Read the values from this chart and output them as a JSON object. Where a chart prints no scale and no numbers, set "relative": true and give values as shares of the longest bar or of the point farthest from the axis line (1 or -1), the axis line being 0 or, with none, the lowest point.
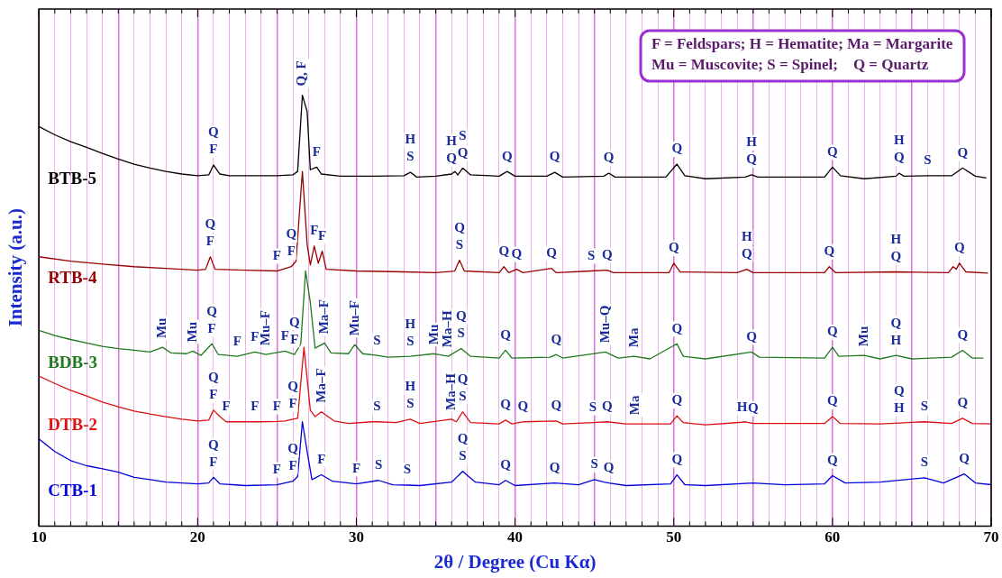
{
  "chart_data": {
    "type": "line",
    "relative": true,
    "xlabel": "2θ / Degree (Cu Kα)",
    "ylabel": "Intensity (a.u.)",
    "xlim": [
      10,
      70
    ],
    "xticks": [
      10,
      {
        "value": 11,
        "label": null
      },
      {
        "value": 12,
        "label": null
      },
      {
        "value": 13,
        "label": null
      },
      {
        "value": 14,
        "label": null
      },
      {
        "value": 15,
        "label": null
      },
      {
        "value": 16,
        "label": null
      },
      {
        "value": 17,
        "label": null
      },
      {
        "value": 18,
        "label": null
      },
      {
        "value": 19,
        "label": null
      },
      20,
      {
        "value": 21,
        "label": null
      },
      {
        "value": 22,
        "label": null
      },
      {
        "value": 23,
        "label": null
      },
      {
        "value": 24,
        "label": null
      },
      {
        "value": 25,
        "label": null
      },
      {
        "value": 26,
        "label": null
      },
      {
        "value": 27,
        "label": null
      },
      {
        "value": 28,
        "label": null
      },
      {
        "value": 29,
        "label": null
      },
      30,
      {
        "value": 31,
        "label": null
      },
      {
        "value": 32,
        "label": null
      },
      {
        "value": 33,
        "label": null
      },
      {
        "value": 34,
        "label": null
      },
      {
        "value": 35,
        "label": null
      },
      {
        "value": 36,
        "label": null
      },
      {
        "value": 37,
        "label": null
      },
      {
        "value": 38,
        "label": null
      },
      {
        "value": 39,
        "label": null
      },
      40,
      {
        "value": 41,
        "label": null
      },
      {
        "value": 42,
        "label": null
      },
      {
        "value": 43,
        "label": null
      },
      {
        "value": 44,
        "label": null
      },
      {
        "value": 45,
        "label": null
      },
      {
        "value": 46,
        "label": null
      },
      {
        "value": 47,
        "label": null
      },
      {
        "value": 48,
        "label": null
      },
      {
        "value": 49,
        "label": null
      },
      50,
      {
        "value": 51,
        "label": null
      },
      {
        "value": 52,
        "label": null
      },
      {
        "value": 53,
        "label": null
      },
      {
        "value": 54,
        "label": null
      },
      {
        "value": 55,
        "label": null
      },
      {
        "value": 56,
        "label": null
      },
      {
        "value": 57,
        "label": null
      },
      {
        "value": 58,
        "label": null
      },
      {
        "value": 59,
        "label": null
      },
      60,
      {
        "value": 61,
        "label": null
      },
      {
        "value": 62,
        "label": null
      },
      {
        "value": 63,
        "label": null
      },
      {
        "value": 64,
        "label": null
      },
      {
        "value": 65,
        "label": null
      },
      {
        "value": 66,
        "label": null
      },
      {
        "value": 67,
        "label": null
      },
      {
        "value": 68,
        "label": null
      },
      {
        "value": 69,
        "label": null
      },
      70
    ],
    "grid": "x",
    "legend": false,
    "marker": "none",
    "line_style": "solid",
    "series": [
      {
        "name": "BTB-5",
        "color": "#000000",
        "x": [
          10,
          11,
          12,
          13,
          14,
          15,
          16,
          17,
          18,
          19,
          20,
          20.7,
          21.0,
          21.4,
          22,
          24,
          25,
          26,
          26.3,
          26.6,
          26.9,
          27.1,
          27.5,
          27.8,
          29,
          31,
          33,
          33.4,
          33.8,
          35,
          36,
          36.2,
          36.4,
          36.7,
          37.2,
          39,
          39.5,
          40,
          42,
          42.5,
          43,
          45.6,
          45.9,
          46.3,
          49.5,
          50.2,
          50.7,
          52,
          54.5,
          54.9,
          55.3,
          59.5,
          60,
          60.5,
          62,
          64,
          64.2,
          64.5,
          66,
          67.5,
          68.2,
          69,
          69.7
        ],
        "values": [
          0.927,
          0.908,
          0.892,
          0.879,
          0.865,
          0.852,
          0.84,
          0.831,
          0.823,
          0.817,
          0.813,
          0.815,
          0.838,
          0.817,
          0.813,
          0.813,
          0.813,
          0.815,
          0.823,
          1.0,
          0.962,
          0.827,
          0.833,
          0.817,
          0.812,
          0.812,
          0.813,
          0.821,
          0.81,
          0.812,
          0.817,
          0.823,
          0.815,
          0.831,
          0.815,
          0.812,
          0.823,
          0.812,
          0.812,
          0.821,
          0.81,
          0.812,
          0.819,
          0.81,
          0.81,
          0.84,
          0.813,
          0.806,
          0.81,
          0.815,
          0.81,
          0.81,
          0.833,
          0.813,
          0.806,
          0.812,
          0.819,
          0.812,
          0.813,
          0.813,
          0.831,
          0.812,
          0.808
        ]
      },
      {
        "name": "RTB-4",
        "color": "#990000",
        "x": [
          10,
          12,
          14,
          16,
          18,
          20,
          20.5,
          20.8,
          21.1,
          23,
          25,
          25.9,
          26.2,
          26.6,
          26.9,
          27.1,
          27.35,
          27.6,
          27.85,
          28.1,
          30,
          33,
          35,
          36.2,
          36.5,
          36.8,
          39,
          39.3,
          39.6,
          40.1,
          40.5,
          42.3,
          42.6,
          44.8,
          45.8,
          46.2,
          49.7,
          50.0,
          50.4,
          54,
          54.6,
          55,
          59.5,
          59.8,
          60.2,
          64,
          67.3,
          67.6,
          67.8,
          68.0,
          68.4,
          69.8
        ],
        "values": [
          0.625,
          0.615,
          0.608,
          0.602,
          0.598,
          0.594,
          0.596,
          0.625,
          0.596,
          0.594,
          0.592,
          0.602,
          0.615,
          0.823,
          0.654,
          0.606,
          0.65,
          0.61,
          0.638,
          0.596,
          0.592,
          0.59,
          0.588,
          0.592,
          0.617,
          0.592,
          0.588,
          0.602,
          0.588,
          0.596,
          0.588,
          0.598,
          0.588,
          0.592,
          0.594,
          0.588,
          0.588,
          0.61,
          0.59,
          0.588,
          0.596,
          0.588,
          0.588,
          0.602,
          0.588,
          0.59,
          0.588,
          0.602,
          0.596,
          0.61,
          0.59,
          0.587
        ]
      },
      {
        "name": "BDB-3",
        "color": "#1e7a1e",
        "x": [
          10,
          11,
          12,
          13,
          14,
          15,
          16,
          17,
          17.8,
          18.3,
          19.3,
          19.7,
          20.2,
          20.9,
          21.3,
          22.5,
          23.6,
          24.3,
          25.5,
          26.1,
          26.5,
          26.8,
          27.1,
          27.4,
          28.0,
          28.4,
          29.5,
          29.9,
          30.4,
          31.3,
          32,
          33.4,
          34.9,
          35.8,
          36.6,
          37.2,
          39,
          39.4,
          39.8,
          42.2,
          42.6,
          43,
          45.7,
          46.5,
          47.5,
          48.5,
          50.2,
          50.6,
          52,
          54.9,
          55.4,
          59.5,
          60.0,
          60.4,
          62,
          63,
          64.0,
          65,
          67.5,
          68.2,
          68.8,
          69.5
        ],
        "values": [
          0.454,
          0.442,
          0.433,
          0.425,
          0.417,
          0.412,
          0.408,
          0.404,
          0.415,
          0.402,
          0.4,
          0.406,
          0.396,
          0.423,
          0.398,
          0.394,
          0.404,
          0.398,
          0.406,
          0.398,
          0.423,
          0.592,
          0.519,
          0.413,
          0.425,
          0.402,
          0.4,
          0.421,
          0.4,
          0.396,
          0.392,
          0.394,
          0.4,
          0.394,
          0.412,
          0.394,
          0.39,
          0.408,
          0.39,
          0.392,
          0.398,
          0.39,
          0.404,
          0.39,
          0.394,
          0.388,
          0.423,
          0.394,
          0.388,
          0.404,
          0.392,
          0.39,
          0.415,
          0.394,
          0.396,
          0.388,
          0.396,
          0.388,
          0.392,
          0.408,
          0.39,
          0.39
        ]
      },
      {
        "name": "DTB-2",
        "color": "#dd1111",
        "x": [
          10,
          11,
          12,
          13,
          14,
          15,
          16,
          17,
          18,
          19,
          20,
          20.7,
          21.0,
          21.4,
          21.8,
          23.6,
          24,
          25.0,
          25.5,
          26.0,
          26.3,
          26.7,
          27.1,
          27.4,
          27.8,
          28.6,
          29.5,
          31,
          31.3,
          32.5,
          33.4,
          34,
          36.0,
          36.3,
          36.7,
          37.2,
          39,
          39.4,
          39.8,
          40.5,
          42.6,
          43,
          44.9,
          45.8,
          47,
          47.6,
          49.8,
          50.2,
          50.6,
          52,
          54.3,
          54.5,
          55,
          59.5,
          60.0,
          60.5,
          63,
          64.2,
          65.8,
          67.5,
          68.2,
          68.8,
          70
        ],
        "values": [
          0.348,
          0.331,
          0.315,
          0.302,
          0.288,
          0.277,
          0.267,
          0.26,
          0.254,
          0.248,
          0.244,
          0.246,
          0.269,
          0.254,
          0.242,
          0.242,
          0.242,
          0.243,
          0.244,
          0.248,
          0.25,
          0.415,
          0.269,
          0.254,
          0.265,
          0.244,
          0.238,
          0.242,
          0.242,
          0.24,
          0.248,
          0.238,
          0.248,
          0.242,
          0.265,
          0.24,
          0.237,
          0.246,
          0.237,
          0.242,
          0.244,
          0.237,
          0.24,
          0.242,
          0.237,
          0.237,
          0.237,
          0.256,
          0.24,
          0.235,
          0.241,
          0.242,
          0.238,
          0.238,
          0.254,
          0.238,
          0.237,
          0.239,
          0.242,
          0.238,
          0.25,
          0.238,
          0.237
        ]
      },
      {
        "name": "CTB-1",
        "color": "#0000dd",
        "x": [
          10,
          11,
          12,
          13,
          14,
          15,
          16,
          17,
          18,
          19,
          20,
          20.7,
          21.0,
          21.4,
          23,
          25,
          26.0,
          26.3,
          26.6,
          26.9,
          27.2,
          27.8,
          28.5,
          30,
          31.4,
          32.3,
          33.2,
          34,
          36,
          36.7,
          37.5,
          39,
          39.4,
          40,
          42.5,
          44,
          45.0,
          45.6,
          45.9,
          47,
          49.8,
          50.2,
          50.7,
          52,
          55,
          57,
          59.5,
          60.0,
          60.8,
          63,
          65.8,
          67,
          68.3,
          69,
          70
        ],
        "values": [
          0.202,
          0.173,
          0.152,
          0.14,
          0.133,
          0.125,
          0.113,
          0.108,
          0.102,
          0.1,
          0.098,
          0.1,
          0.113,
          0.098,
          0.094,
          0.096,
          0.104,
          0.115,
          0.242,
          0.173,
          0.108,
          0.119,
          0.104,
          0.098,
          0.106,
          0.096,
          0.095,
          0.094,
          0.102,
          0.127,
          0.102,
          0.096,
          0.106,
          0.094,
          0.1,
          0.096,
          0.108,
          0.102,
          0.1,
          0.094,
          0.098,
          0.119,
          0.096,
          0.094,
          0.1,
          0.096,
          0.098,
          0.117,
          0.1,
          0.102,
          0.112,
          0.1,
          0.121,
          0.1,
          0.096
        ]
      }
    ],
    "annotations": [
      "F = Feldspars; H = Hematite; Ma = Margarite",
      "Mu = Muscovite; S = Spinel;    Q = Quartz",
      {
        "text": "Q, F",
        "x": 26.6,
        "y": 1.0
      },
      {
        "text": "F",
        "x": 21.0,
        "y": 0.838
      },
      {
        "text": "Q",
        "x": 21.0,
        "y": 0.838
      },
      {
        "text": "F",
        "x": 27.5,
        "y": 0.833
      },
      {
        "text": "S",
        "x": 33.4,
        "y": 0.821
      },
      {
        "text": "H",
        "x": 33.4,
        "y": 0.821
      },
      {
        "text": "Q",
        "x": 36,
        "y": 0.817
      },
      {
        "text": "H",
        "x": 36,
        "y": 0.817
      },
      {
        "text": "Q",
        "x": 36.7,
        "y": 0.831
      },
      {
        "text": "S",
        "x": 36.7,
        "y": 0.831
      },
      {
        "text": "Q",
        "x": 39.5,
        "y": 0.823
      },
      {
        "text": "Q",
        "x": 42.5,
        "y": 0.821
      },
      {
        "text": "Q",
        "x": 45.9,
        "y": 0.819
      },
      {
        "text": "Q",
        "x": 50.2,
        "y": 0.84
      },
      {
        "text": "Q",
        "x": 54.9,
        "y": 0.815
      },
      {
        "text": "H",
        "x": 54.9,
        "y": 0.815
      },
      {
        "text": "Q",
        "x": 60,
        "y": 0.833
      },
      {
        "text": "Q",
        "x": 64.2,
        "y": 0.819
      },
      {
        "text": "H",
        "x": 64.2,
        "y": 0.819
      },
      {
        "text": "S",
        "x": 66,
        "y": 0.813
      },
      {
        "text": "Q",
        "x": 68.2,
        "y": 0.831
      },
      {
        "text": "F",
        "x": 20.8,
        "y": 0.625
      },
      {
        "text": "Q",
        "x": 20.8,
        "y": 0.625
      },
      {
        "text": "F",
        "x": 25,
        "y": 0.592
      },
      {
        "text": "F",
        "x": 25.9,
        "y": 0.602
      },
      {
        "text": "Q",
        "x": 25.9,
        "y": 0.602
      },
      {
        "text": "F",
        "x": 27.35,
        "y": 0.65
      },
      {
        "text": "F",
        "x": 27.85,
        "y": 0.638
      },
      {
        "text": "S",
        "x": 36.5,
        "y": 0.617
      },
      {
        "text": "Q",
        "x": 36.5,
        "y": 0.617
      },
      {
        "text": "Q",
        "x": 39.3,
        "y": 0.602
      },
      {
        "text": "Q",
        "x": 40.1,
        "y": 0.596
      },
      {
        "text": "Q",
        "x": 42.3,
        "y": 0.598
      },
      {
        "text": "S",
        "x": 44.8,
        "y": 0.592
      },
      {
        "text": "Q",
        "x": 45.8,
        "y": 0.594
      },
      {
        "text": "Q",
        "x": 50.0,
        "y": 0.61
      },
      {
        "text": "Q",
        "x": 54.6,
        "y": 0.596
      },
      {
        "text": "H",
        "x": 54.6,
        "y": 0.596
      },
      {
        "text": "Q",
        "x": 59.8,
        "y": 0.602
      },
      {
        "text": "Q",
        "x": 64,
        "y": 0.59
      },
      {
        "text": "H",
        "x": 64,
        "y": 0.59
      },
      {
        "text": "Q",
        "x": 68.0,
        "y": 0.61
      },
      {
        "text": "Mu",
        "x": 17.8,
        "y": 0.415
      },
      {
        "text": "Mu",
        "x": 19.7,
        "y": 0.406
      },
      {
        "text": "F",
        "x": 20.9,
        "y": 0.423
      },
      {
        "text": "Q",
        "x": 20.9,
        "y": 0.423
      },
      {
        "text": "F",
        "x": 22.5,
        "y": 0.394
      },
      {
        "text": "F",
        "x": 23.6,
        "y": 0.404
      },
      {
        "text": "Mu–F",
        "x": 24.3,
        "y": 0.398
      },
      {
        "text": "F",
        "x": 25.5,
        "y": 0.406
      },
      {
        "text": "F",
        "x": 26.1,
        "y": 0.398
      },
      {
        "text": "Q",
        "x": 26.1,
        "y": 0.398
      },
      {
        "text": "Ma–F",
        "x": 28.0,
        "y": 0.425
      },
      {
        "text": "Mu–F",
        "x": 29.9,
        "y": 0.421
      },
      {
        "text": "S",
        "x": 31.3,
        "y": 0.396
      },
      {
        "text": "S",
        "x": 33.4,
        "y": 0.394
      },
      {
        "text": "H",
        "x": 33.4,
        "y": 0.394
      },
      {
        "text": "Mu",
        "x": 34.9,
        "y": 0.4
      },
      {
        "text": "Ma–H",
        "x": 35.8,
        "y": 0.394
      },
      {
        "text": "S",
        "x": 36.6,
        "y": 0.412
      },
      {
        "text": "Q",
        "x": 36.6,
        "y": 0.412
      },
      {
        "text": "Q",
        "x": 39.4,
        "y": 0.408
      },
      {
        "text": "Q",
        "x": 42.6,
        "y": 0.398
      },
      {
        "text": "Mu–Q",
        "x": 45.7,
        "y": 0.404
      },
      {
        "text": "Ma",
        "x": 47.5,
        "y": 0.394
      },
      {
        "text": "Q",
        "x": 50.2,
        "y": 0.423
      },
      {
        "text": "Q",
        "x": 54.9,
        "y": 0.404
      },
      {
        "text": "Q",
        "x": 60.0,
        "y": 0.415
      },
      {
        "text": "Mu",
        "x": 62,
        "y": 0.396
      },
      {
        "text": "H",
        "x": 64.0,
        "y": 0.396
      },
      {
        "text": "Q",
        "x": 64.0,
        "y": 0.396
      },
      {
        "text": "Q",
        "x": 68.2,
        "y": 0.408
      },
      {
        "text": "F",
        "x": 21.0,
        "y": 0.269
      },
      {
        "text": "Q",
        "x": 21.0,
        "y": 0.269
      },
      {
        "text": "F",
        "x": 21.8,
        "y": 0.242
      },
      {
        "text": "F",
        "x": 23.6,
        "y": 0.242
      },
      {
        "text": "F",
        "x": 25.0,
        "y": 0.243
      },
      {
        "text": "F",
        "x": 26.0,
        "y": 0.248
      },
      {
        "text": "Q",
        "x": 26.0,
        "y": 0.248
      },
      {
        "text": "Ma–F",
        "x": 27.8,
        "y": 0.265
      },
      {
        "text": "S",
        "x": 31.3,
        "y": 0.242
      },
      {
        "text": "S",
        "x": 33.4,
        "y": 0.248
      },
      {
        "text": "H",
        "x": 33.4,
        "y": 0.248
      },
      {
        "text": "Ma–H",
        "x": 36.0,
        "y": 0.248
      },
      {
        "text": "S",
        "x": 36.7,
        "y": 0.265
      },
      {
        "text": "Q",
        "x": 36.7,
        "y": 0.265
      },
      {
        "text": "Q",
        "x": 39.4,
        "y": 0.246
      },
      {
        "text": "Q",
        "x": 40.5,
        "y": 0.242
      },
      {
        "text": "Q",
        "x": 42.6,
        "y": 0.244
      },
      {
        "text": "S",
        "x": 44.9,
        "y": 0.24
      },
      {
        "text": "Q",
        "x": 45.8,
        "y": 0.242
      },
      {
        "text": "Ma",
        "x": 47.6,
        "y": 0.237
      },
      {
        "text": "Q",
        "x": 50.2,
        "y": 0.256
      },
      {
        "text": "H",
        "x": 54.3,
        "y": 0.241
      },
      {
        "text": "Q",
        "x": 55,
        "y": 0.238
      },
      {
        "text": "Q",
        "x": 60.0,
        "y": 0.254
      },
      {
        "text": "H",
        "x": 64.2,
        "y": 0.239
      },
      {
        "text": "Q",
        "x": 64.2,
        "y": 0.239
      },
      {
        "text": "S",
        "x": 65.8,
        "y": 0.242
      },
      {
        "text": "Q",
        "x": 68.2,
        "y": 0.25
      },
      {
        "text": "F",
        "x": 21.0,
        "y": 0.113
      },
      {
        "text": "Q",
        "x": 21.0,
        "y": 0.113
      },
      {
        "text": "F",
        "x": 25,
        "y": 0.096
      },
      {
        "text": "F",
        "x": 26.0,
        "y": 0.104
      },
      {
        "text": "Q",
        "x": 26.0,
        "y": 0.104
      },
      {
        "text": "F",
        "x": 27.8,
        "y": 0.119
      },
      {
        "text": "F",
        "x": 30,
        "y": 0.098
      },
      {
        "text": "S",
        "x": 31.4,
        "y": 0.106
      },
      {
        "text": "S",
        "x": 33.2,
        "y": 0.095
      },
      {
        "text": "S",
        "x": 36.7,
        "y": 0.127
      },
      {
        "text": "Q",
        "x": 36.7,
        "y": 0.127
      },
      {
        "text": "Q",
        "x": 39.4,
        "y": 0.106
      },
      {
        "text": "Q",
        "x": 42.5,
        "y": 0.1
      },
      {
        "text": "S",
        "x": 45.0,
        "y": 0.108
      },
      {
        "text": "Q",
        "x": 45.9,
        "y": 0.1
      },
      {
        "text": "Q",
        "x": 50.2,
        "y": 0.119
      },
      {
        "text": "Q",
        "x": 60.0,
        "y": 0.117
      },
      {
        "text": "S",
        "x": 65.8,
        "y": 0.112
      },
      {
        "text": "Q",
        "x": 68.3,
        "y": 0.121
      }
    ]
  }
}
